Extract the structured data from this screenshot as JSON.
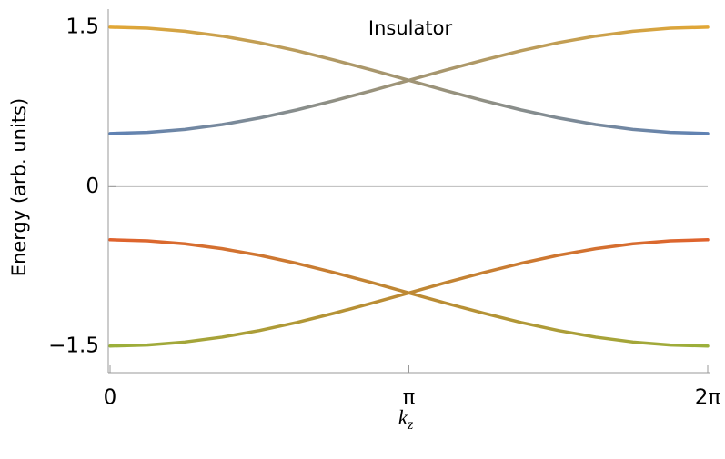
{
  "chart_data": {
    "type": "line",
    "title": "Insulator",
    "xlabel": "k",
    "xlabel_subscript": "z",
    "ylabel": "Energy (arb. units)",
    "x": [
      0,
      0.3927,
      0.7854,
      1.1781,
      1.5708,
      1.9635,
      2.3562,
      2.7489,
      3.1416,
      3.5343,
      3.927,
      4.3197,
      4.7124,
      5.1051,
      5.4978,
      5.8905,
      6.2832
    ],
    "series": [
      {
        "color": [
          "#e2a735",
          "#5f82b4"
        ],
        "values": [
          1.5,
          1.49,
          1.462,
          1.416,
          1.354,
          1.278,
          1.191,
          1.098,
          1,
          0.902,
          0.809,
          0.722,
          0.646,
          0.584,
          0.538,
          0.51,
          0.5
        ]
      },
      {
        "color": [
          "#5f82b4",
          "#e2a735"
        ],
        "values": [
          0.5,
          0.51,
          0.538,
          0.584,
          0.646,
          0.722,
          0.809,
          0.902,
          1,
          1.098,
          1.191,
          1.278,
          1.354,
          1.416,
          1.462,
          1.49,
          1.5
        ]
      },
      {
        "color": [
          "#e0622d",
          "#9bb03b"
        ],
        "values": [
          -0.5,
          -0.51,
          -0.538,
          -0.584,
          -0.646,
          -0.722,
          -0.809,
          -0.902,
          -1,
          -1.098,
          -1.191,
          -1.278,
          -1.354,
          -1.416,
          -1.462,
          -1.49,
          -1.5
        ]
      },
      {
        "color": [
          "#9bb03b",
          "#e0622d"
        ],
        "values": [
          -1.5,
          -1.49,
          -1.462,
          -1.416,
          -1.354,
          -1.278,
          -1.191,
          -1.098,
          -1,
          -0.902,
          -0.809,
          -0.722,
          -0.646,
          -0.584,
          -0.538,
          -0.51,
          -0.5
        ]
      }
    ],
    "xlim": [
      0,
      6.2832
    ],
    "ylim": [
      -1.75,
      1.67
    ],
    "xticks": [
      0,
      {
        "value": 3.1416,
        "label": "π"
      },
      {
        "value": 6.2832,
        "label": "2π"
      }
    ],
    "yticks": [
      {
        "value": -1.5,
        "label": "−1.5"
      },
      0,
      1.5
    ],
    "zero_line": true
  }
}
